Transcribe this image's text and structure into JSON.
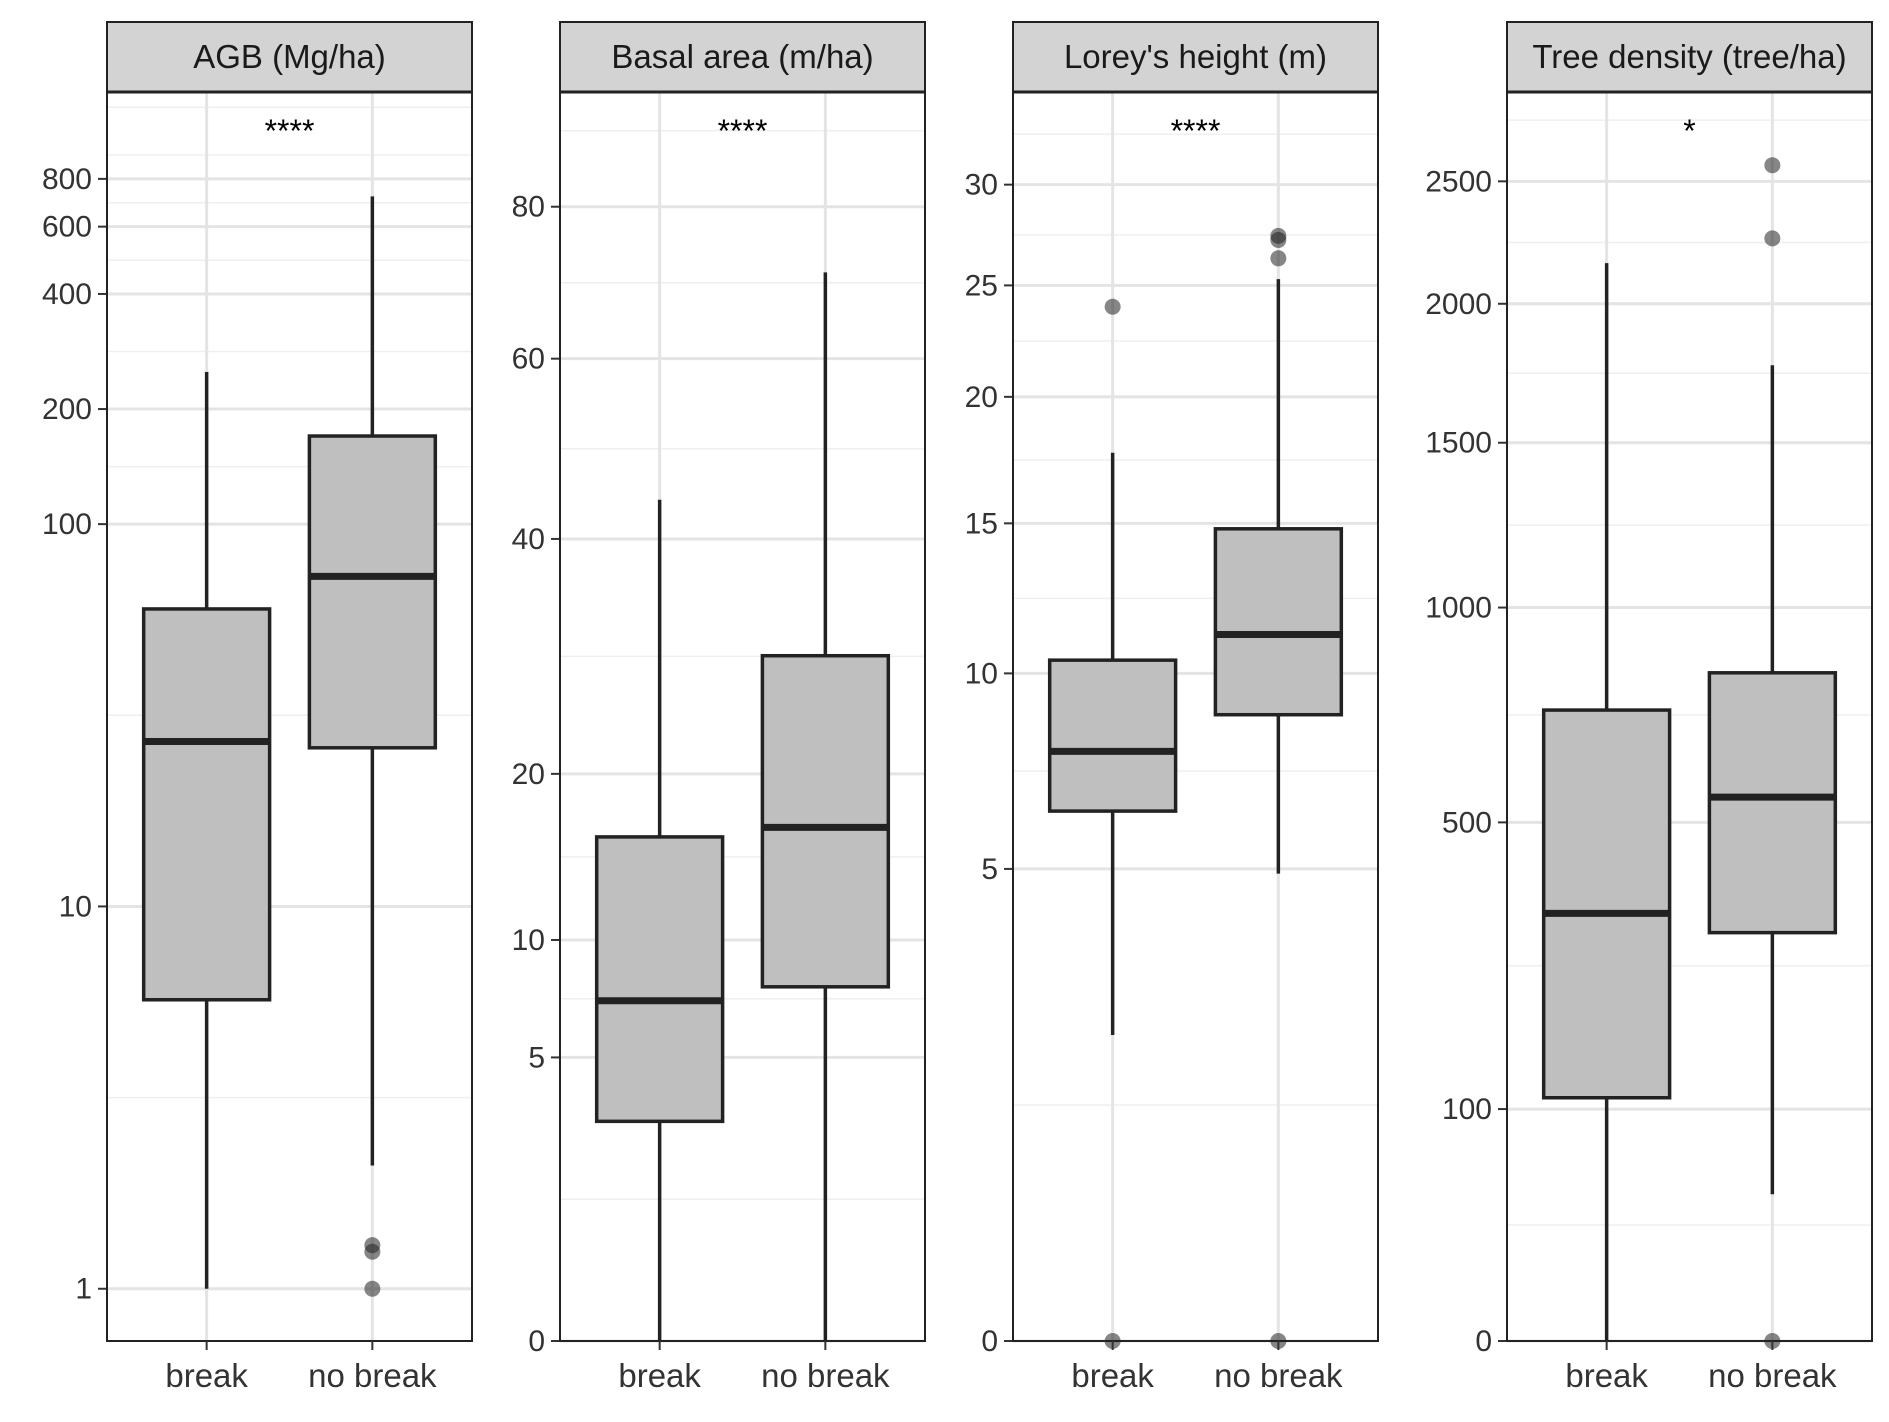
{
  "chart_data": [
    {
      "type": "box",
      "title": "AGB (Mg/ha)",
      "significance": "****",
      "scale": "pseudo-log",
      "categories": [
        "break",
        "no break"
      ],
      "y_ticks": [
        1,
        10,
        100,
        200,
        400,
        600,
        800
      ],
      "y_tick_labels": [
        "1",
        "10",
        "100",
        "200",
        "400",
        "600",
        "800"
      ],
      "ylim": [
        0.73,
        1350
      ],
      "boxes": [
        {
          "category": "break",
          "whisker_low": 1,
          "q1": 5.7,
          "median": 27,
          "q3": 60,
          "whisker_high": 250,
          "outliers": []
        },
        {
          "category": "no break",
          "whisker_low": 2.1,
          "q1": 26,
          "median": 73,
          "q3": 170,
          "whisker_high": 720,
          "outliers": [
            1.3,
            1.25,
            1.0
          ]
        }
      ]
    },
    {
      "type": "box",
      "title": "Basal area (m/ha)",
      "significance": "****",
      "scale": "sqrt",
      "categories": [
        "break",
        "no break"
      ],
      "y_ticks": [
        0,
        5,
        10,
        20,
        40,
        60,
        80
      ],
      "y_tick_labels": [
        "0",
        "5",
        "10",
        "20",
        "40",
        "60",
        "80"
      ],
      "ylim": [
        -0.35,
        97
      ],
      "boxes": [
        {
          "category": "break",
          "whisker_low": 0,
          "q1": 3,
          "median": 7.2,
          "q3": 15.8,
          "whisker_high": 44,
          "outliers": []
        },
        {
          "category": "no break",
          "whisker_low": 0,
          "q1": 7.8,
          "median": 16.4,
          "q3": 29.2,
          "whisker_high": 71,
          "outliers": []
        }
      ]
    },
    {
      "type": "box",
      "title": "Lorey's height (m)",
      "significance": "****",
      "scale": "sqrt",
      "categories": [
        "break",
        "no break"
      ],
      "y_ticks": [
        0,
        5,
        10,
        15,
        20,
        25,
        30
      ],
      "y_tick_labels": [
        "0",
        "5",
        "10",
        "15",
        "20",
        "25",
        "30"
      ],
      "ylim": [
        -0.1,
        35
      ],
      "boxes": [
        {
          "category": "break",
          "whisker_low": 2.1,
          "q1": 6.3,
          "median": 7.8,
          "q3": 10.4,
          "whisker_high": 17.7,
          "outliers": [
            24,
            0
          ]
        },
        {
          "category": "no break",
          "whisker_low": 4.9,
          "q1": 8.8,
          "median": 11.2,
          "q3": 14.8,
          "whisker_high": 25.3,
          "outliers": [
            27.4,
            27.2,
            26.3,
            0
          ]
        }
      ]
    },
    {
      "type": "box",
      "title": "Tree density (tree/ha)",
      "significance": "*",
      "scale": "sqrt",
      "categories": [
        "break",
        "no break"
      ],
      "y_ticks": [
        0,
        100,
        500,
        1000,
        1500,
        2000,
        2500
      ],
      "y_tick_labels": [
        "0",
        "100",
        "500",
        "1000",
        "1500",
        "2000",
        "2500"
      ],
      "ylim": [
        -2,
        2900
      ],
      "boxes": [
        {
          "category": "break",
          "whisker_low": 0,
          "q1": 110,
          "median": 340,
          "q3": 740,
          "whisker_high": 2160,
          "outliers": []
        },
        {
          "category": "no break",
          "whisker_low": 40,
          "q1": 310,
          "median": 550,
          "q3": 830,
          "whisker_high": 1770,
          "outliers": [
            2570,
            2260,
            0
          ]
        }
      ]
    }
  ],
  "colors": {
    "box_fill": "#bfbfbf",
    "box_stroke": "#222222",
    "strip_fill": "#d3d3d3",
    "grid_major": "#e4e4e4",
    "grid_minor": "#efefef",
    "outlier": "#222222",
    "text": "#333333"
  }
}
